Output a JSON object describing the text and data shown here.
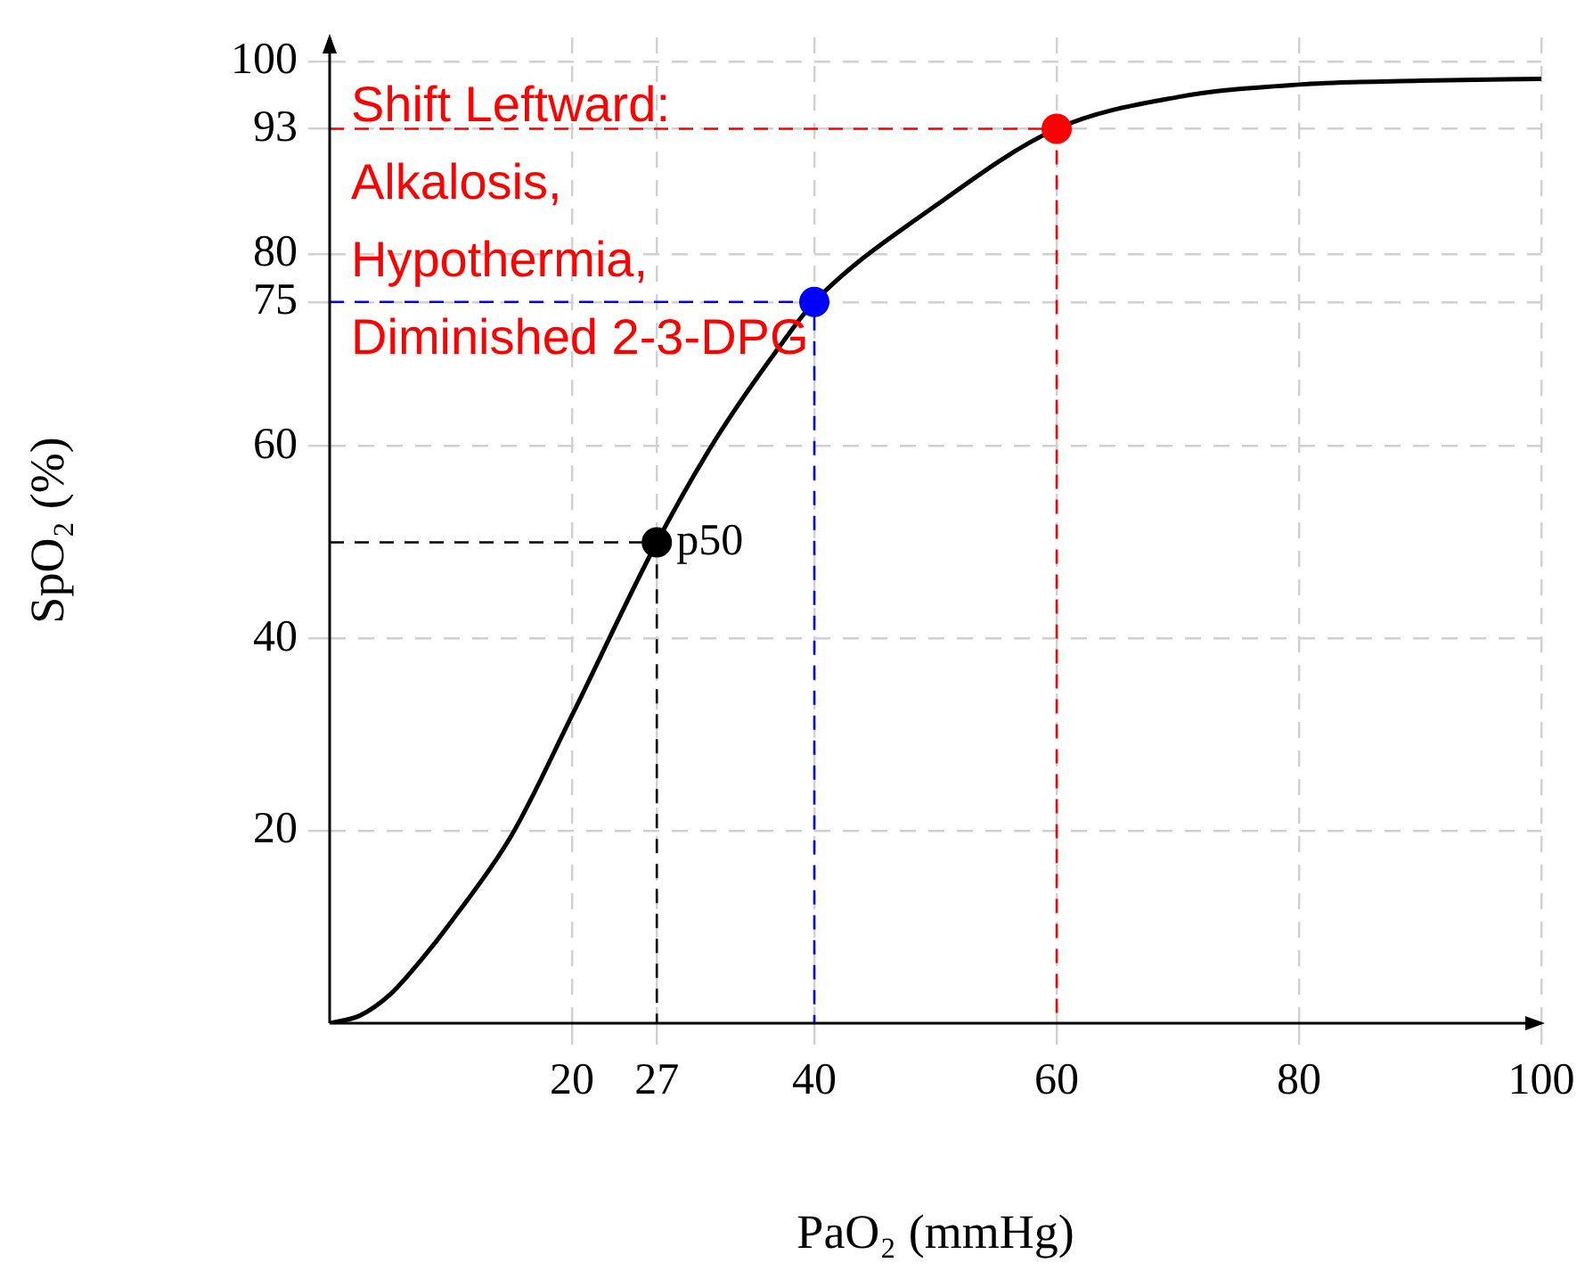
{
  "chart_data": {
    "type": "line",
    "xlabel": "PaO₂ (mmHg)",
    "ylabel": "SpO₂ (%)",
    "xlim": [
      0,
      100
    ],
    "ylim": [
      0,
      102.5
    ],
    "xticks": [
      20,
      27,
      40,
      60,
      80,
      100
    ],
    "yticks": [
      20,
      40,
      60,
      75,
      80,
      93,
      100
    ],
    "grid": true,
    "legend": false,
    "series": [
      {
        "color": "#000000",
        "marker": "none",
        "line_style": "solid",
        "x": [
          0,
          2.5,
          5,
          7.5,
          10,
          15,
          20,
          27,
          32,
          37.5,
          40,
          50,
          60,
          70,
          80,
          90,
          100
        ],
        "values": [
          0,
          0.8,
          3,
          6.5,
          10.5,
          19.5,
          32,
          50,
          61,
          71,
          75,
          85,
          93,
          96.3,
          97.6,
          98,
          98.2
        ]
      },
      {
        "type": "line",
        "color": "#000000",
        "marker": "none",
        "line_style": "dashed",
        "x": [
          0,
          27,
          27
        ],
        "values": [
          50,
          50,
          0
        ]
      },
      {
        "type": "line",
        "color": "#0000ff",
        "marker": "none",
        "line_style": "dashed",
        "x": [
          0,
          40,
          40
        ],
        "values": [
          75,
          75,
          0
        ]
      },
      {
        "type": "line",
        "color": "#ff0000",
        "marker": "none",
        "line_style": "dashed",
        "x": [
          0,
          60,
          60
        ],
        "values": [
          93,
          93,
          0
        ]
      },
      {
        "type": "scatter",
        "colors": [
          "#000000",
          "#0000ff",
          "#ff0000"
        ],
        "marker": "circle",
        "x": [
          27,
          40,
          60
        ],
        "values": [
          50,
          75,
          93
        ]
      }
    ],
    "annotations": [
      {
        "text": "p50",
        "x": 27,
        "y": 50
      },
      "Shift Leftward:\nAlkalosis,\nHypothermia,\nDiminished 2-3-DPG"
    ]
  }
}
